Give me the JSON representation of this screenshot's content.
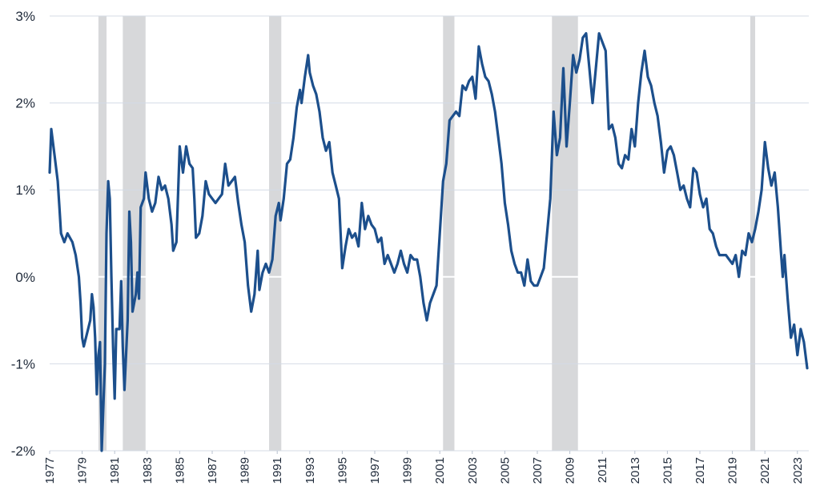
{
  "chart_data": {
    "type": "line",
    "title": "",
    "xlabel": "",
    "ylabel": "",
    "xlim": [
      1977.0,
      2023.7
    ],
    "ylim": [
      -2,
      3
    ],
    "y_ticks": [
      {
        "value": 3,
        "label": "3%"
      },
      {
        "value": 2,
        "label": "2%"
      },
      {
        "value": 1,
        "label": "1%"
      },
      {
        "value": 0,
        "label": "0%"
      },
      {
        "value": -1,
        "label": "-1%"
      },
      {
        "value": -2,
        "label": "-2%"
      }
    ],
    "x_ticks": [
      "1977",
      "1979",
      "1981",
      "1983",
      "1985",
      "1987",
      "1989",
      "1991",
      "1993",
      "1995",
      "1997",
      "1999",
      "2001",
      "2003",
      "2005",
      "2007",
      "2009",
      "2011",
      "2013",
      "2015",
      "2017",
      "2019",
      "2021",
      "2023"
    ],
    "x_tick_orientation": "vertical",
    "grid": "horizontal",
    "colors": {
      "series": "#1c4f8c",
      "recession": "#d7d8da",
      "grid": "#d4dbe6"
    },
    "recessions": [
      [
        1980.0,
        1980.5
      ],
      [
        1981.5,
        1982.9
      ],
      [
        1990.5,
        1991.25
      ],
      [
        2001.2,
        2001.9
      ],
      [
        2007.9,
        2009.5
      ],
      [
        2020.1,
        2020.4
      ]
    ],
    "series": [
      {
        "color": "#1c4f8c",
        "points": [
          [
            1977.0,
            1.2
          ],
          [
            1977.1,
            1.7
          ],
          [
            1977.3,
            1.4
          ],
          [
            1977.5,
            1.1
          ],
          [
            1977.6,
            0.8
          ],
          [
            1977.7,
            0.5
          ],
          [
            1977.9,
            0.4
          ],
          [
            1978.1,
            0.5
          ],
          [
            1978.4,
            0.4
          ],
          [
            1978.6,
            0.25
          ],
          [
            1978.8,
            0.0
          ],
          [
            1978.9,
            -0.3
          ],
          [
            1979.0,
            -0.7
          ],
          [
            1979.1,
            -0.8
          ],
          [
            1979.3,
            -0.65
          ],
          [
            1979.5,
            -0.5
          ],
          [
            1979.6,
            -0.2
          ],
          [
            1979.7,
            -0.35
          ],
          [
            1979.8,
            -0.7
          ],
          [
            1979.9,
            -1.35
          ],
          [
            1980.0,
            -0.9
          ],
          [
            1980.1,
            -0.75
          ],
          [
            1980.2,
            -2.0
          ],
          [
            1980.4,
            -1.0
          ],
          [
            1980.5,
            0.5
          ],
          [
            1980.6,
            1.1
          ],
          [
            1980.7,
            0.9
          ],
          [
            1980.8,
            0.0
          ],
          [
            1980.9,
            -0.8
          ],
          [
            1981.0,
            -1.4
          ],
          [
            1981.1,
            -0.6
          ],
          [
            1981.3,
            -0.6
          ],
          [
            1981.4,
            -0.05
          ],
          [
            1981.5,
            -0.8
          ],
          [
            1981.6,
            -1.3
          ],
          [
            1981.8,
            -0.5
          ],
          [
            1981.9,
            0.75
          ],
          [
            1982.0,
            0.4
          ],
          [
            1982.1,
            -0.4
          ],
          [
            1982.3,
            -0.2
          ],
          [
            1982.4,
            0.05
          ],
          [
            1982.5,
            -0.25
          ],
          [
            1982.6,
            0.8
          ],
          [
            1982.8,
            0.9
          ],
          [
            1982.9,
            1.2
          ],
          [
            1983.1,
            0.9
          ],
          [
            1983.3,
            0.75
          ],
          [
            1983.5,
            0.85
          ],
          [
            1983.7,
            1.15
          ],
          [
            1983.9,
            1.0
          ],
          [
            1984.1,
            1.05
          ],
          [
            1984.3,
            0.9
          ],
          [
            1984.5,
            0.6
          ],
          [
            1984.6,
            0.3
          ],
          [
            1984.8,
            0.4
          ],
          [
            1985.0,
            1.5
          ],
          [
            1985.2,
            1.2
          ],
          [
            1985.4,
            1.5
          ],
          [
            1985.6,
            1.3
          ],
          [
            1985.8,
            1.25
          ],
          [
            1985.9,
            0.9
          ],
          [
            1986.0,
            0.45
          ],
          [
            1986.2,
            0.5
          ],
          [
            1986.4,
            0.7
          ],
          [
            1986.6,
            1.1
          ],
          [
            1986.8,
            0.95
          ],
          [
            1987.0,
            0.9
          ],
          [
            1987.2,
            0.85
          ],
          [
            1987.4,
            0.9
          ],
          [
            1987.6,
            0.95
          ],
          [
            1987.8,
            1.3
          ],
          [
            1988.0,
            1.05
          ],
          [
            1988.2,
            1.1
          ],
          [
            1988.4,
            1.15
          ],
          [
            1988.6,
            0.85
          ],
          [
            1988.8,
            0.6
          ],
          [
            1989.0,
            0.4
          ],
          [
            1989.2,
            -0.1
          ],
          [
            1989.4,
            -0.4
          ],
          [
            1989.6,
            -0.2
          ],
          [
            1989.8,
            0.3
          ],
          [
            1989.9,
            -0.15
          ],
          [
            1990.1,
            0.05
          ],
          [
            1990.3,
            0.15
          ],
          [
            1990.5,
            0.05
          ],
          [
            1990.7,
            0.2
          ],
          [
            1990.9,
            0.7
          ],
          [
            1991.1,
            0.85
          ],
          [
            1991.2,
            0.65
          ],
          [
            1991.4,
            0.9
          ],
          [
            1991.6,
            1.3
          ],
          [
            1991.8,
            1.35
          ],
          [
            1992.0,
            1.6
          ],
          [
            1992.2,
            1.95
          ],
          [
            1992.4,
            2.15
          ],
          [
            1992.5,
            2.0
          ],
          [
            1992.7,
            2.3
          ],
          [
            1992.9,
            2.55
          ],
          [
            1993.0,
            2.35
          ],
          [
            1993.2,
            2.2
          ],
          [
            1993.4,
            2.1
          ],
          [
            1993.6,
            1.9
          ],
          [
            1993.8,
            1.6
          ],
          [
            1994.0,
            1.45
          ],
          [
            1994.2,
            1.55
          ],
          [
            1994.4,
            1.2
          ],
          [
            1994.6,
            1.05
          ],
          [
            1994.8,
            0.9
          ],
          [
            1995.0,
            0.1
          ],
          [
            1995.2,
            0.35
          ],
          [
            1995.4,
            0.55
          ],
          [
            1995.6,
            0.45
          ],
          [
            1995.8,
            0.5
          ],
          [
            1996.0,
            0.35
          ],
          [
            1996.2,
            0.85
          ],
          [
            1996.4,
            0.55
          ],
          [
            1996.6,
            0.7
          ],
          [
            1996.8,
            0.6
          ],
          [
            1997.0,
            0.55
          ],
          [
            1997.2,
            0.4
          ],
          [
            1997.4,
            0.45
          ],
          [
            1997.6,
            0.15
          ],
          [
            1997.8,
            0.25
          ],
          [
            1998.0,
            0.15
          ],
          [
            1998.2,
            0.05
          ],
          [
            1998.4,
            0.15
          ],
          [
            1998.6,
            0.3
          ],
          [
            1998.8,
            0.15
          ],
          [
            1999.0,
            0.05
          ],
          [
            1999.2,
            0.25
          ],
          [
            1999.4,
            0.2
          ],
          [
            1999.6,
            0.2
          ],
          [
            1999.8,
            0.0
          ],
          [
            2000.0,
            -0.3
          ],
          [
            2000.2,
            -0.5
          ],
          [
            2000.4,
            -0.3
          ],
          [
            2000.6,
            -0.2
          ],
          [
            2000.8,
            -0.1
          ],
          [
            2001.0,
            0.5
          ],
          [
            2001.2,
            1.1
          ],
          [
            2001.4,
            1.3
          ],
          [
            2001.6,
            1.8
          ],
          [
            2001.8,
            1.85
          ],
          [
            2002.0,
            1.9
          ],
          [
            2002.2,
            1.85
          ],
          [
            2002.4,
            2.2
          ],
          [
            2002.6,
            2.15
          ],
          [
            2002.8,
            2.25
          ],
          [
            2003.0,
            2.3
          ],
          [
            2003.2,
            2.05
          ],
          [
            2003.4,
            2.65
          ],
          [
            2003.6,
            2.45
          ],
          [
            2003.8,
            2.3
          ],
          [
            2004.0,
            2.25
          ],
          [
            2004.2,
            2.1
          ],
          [
            2004.4,
            1.9
          ],
          [
            2004.6,
            1.6
          ],
          [
            2004.8,
            1.3
          ],
          [
            2005.0,
            0.85
          ],
          [
            2005.2,
            0.6
          ],
          [
            2005.4,
            0.3
          ],
          [
            2005.6,
            0.15
          ],
          [
            2005.8,
            0.05
          ],
          [
            2006.0,
            0.05
          ],
          [
            2006.2,
            -0.1
          ],
          [
            2006.4,
            0.2
          ],
          [
            2006.6,
            -0.05
          ],
          [
            2006.8,
            -0.1
          ],
          [
            2007.0,
            -0.1
          ],
          [
            2007.2,
            0.0
          ],
          [
            2007.4,
            0.1
          ],
          [
            2007.6,
            0.5
          ],
          [
            2007.8,
            0.9
          ],
          [
            2008.0,
            1.9
          ],
          [
            2008.2,
            1.4
          ],
          [
            2008.4,
            1.6
          ],
          [
            2008.6,
            2.4
          ],
          [
            2008.8,
            1.5
          ],
          [
            2009.0,
            2.0
          ],
          [
            2009.2,
            2.55
          ],
          [
            2009.4,
            2.35
          ],
          [
            2009.6,
            2.5
          ],
          [
            2009.8,
            2.75
          ],
          [
            2010.0,
            2.8
          ],
          [
            2010.2,
            2.4
          ],
          [
            2010.4,
            2.0
          ],
          [
            2010.6,
            2.4
          ],
          [
            2010.8,
            2.8
          ],
          [
            2011.0,
            2.7
          ],
          [
            2011.2,
            2.6
          ],
          [
            2011.4,
            1.7
          ],
          [
            2011.6,
            1.75
          ],
          [
            2011.8,
            1.6
          ],
          [
            2012.0,
            1.3
          ],
          [
            2012.2,
            1.25
          ],
          [
            2012.4,
            1.4
          ],
          [
            2012.6,
            1.35
          ],
          [
            2012.8,
            1.7
          ],
          [
            2013.0,
            1.5
          ],
          [
            2013.2,
            2.0
          ],
          [
            2013.4,
            2.35
          ],
          [
            2013.6,
            2.6
          ],
          [
            2013.8,
            2.3
          ],
          [
            2014.0,
            2.2
          ],
          [
            2014.2,
            2.0
          ],
          [
            2014.4,
            1.85
          ],
          [
            2014.6,
            1.55
          ],
          [
            2014.8,
            1.2
          ],
          [
            2015.0,
            1.45
          ],
          [
            2015.2,
            1.5
          ],
          [
            2015.4,
            1.4
          ],
          [
            2015.6,
            1.2
          ],
          [
            2015.8,
            1.0
          ],
          [
            2016.0,
            1.05
          ],
          [
            2016.2,
            0.9
          ],
          [
            2016.4,
            0.8
          ],
          [
            2016.6,
            1.25
          ],
          [
            2016.8,
            1.2
          ],
          [
            2017.0,
            0.95
          ],
          [
            2017.2,
            0.8
          ],
          [
            2017.4,
            0.9
          ],
          [
            2017.6,
            0.55
          ],
          [
            2017.8,
            0.5
          ],
          [
            2018.0,
            0.35
          ],
          [
            2018.2,
            0.25
          ],
          [
            2018.4,
            0.25
          ],
          [
            2018.6,
            0.25
          ],
          [
            2018.8,
            0.2
          ],
          [
            2019.0,
            0.15
          ],
          [
            2019.2,
            0.25
          ],
          [
            2019.4,
            0.0
          ],
          [
            2019.6,
            0.3
          ],
          [
            2019.8,
            0.25
          ],
          [
            2020.0,
            0.5
          ],
          [
            2020.2,
            0.4
          ],
          [
            2020.4,
            0.55
          ],
          [
            2020.6,
            0.75
          ],
          [
            2020.8,
            1.0
          ],
          [
            2021.0,
            1.55
          ],
          [
            2021.2,
            1.25
          ],
          [
            2021.4,
            1.05
          ],
          [
            2021.6,
            1.2
          ],
          [
            2021.8,
            0.8
          ],
          [
            2022.0,
            0.25
          ],
          [
            2022.1,
            0.0
          ],
          [
            2022.2,
            0.25
          ],
          [
            2022.4,
            -0.25
          ],
          [
            2022.6,
            -0.7
          ],
          [
            2022.8,
            -0.55
          ],
          [
            2023.0,
            -0.9
          ],
          [
            2023.2,
            -0.6
          ],
          [
            2023.4,
            -0.75
          ],
          [
            2023.6,
            -1.05
          ]
        ]
      }
    ]
  }
}
